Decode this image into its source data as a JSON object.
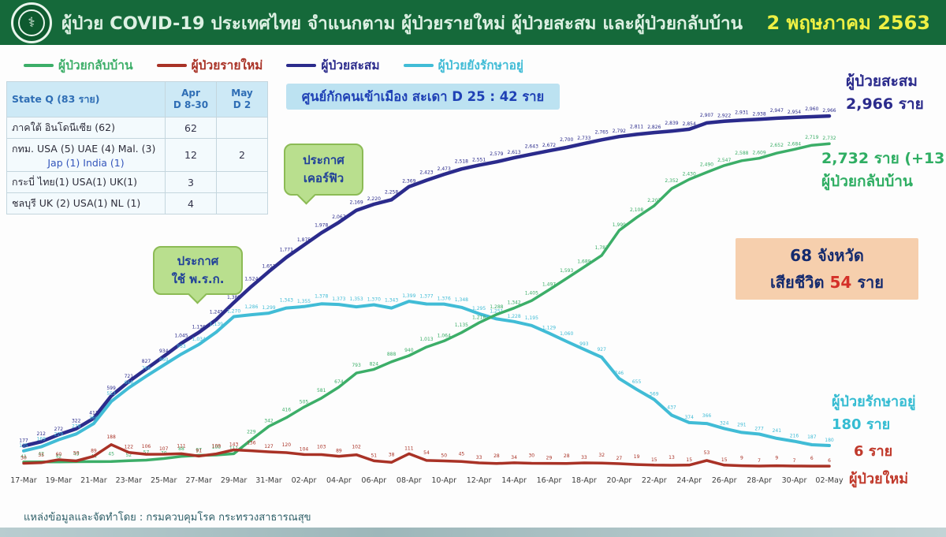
{
  "header": {
    "title": "ผู้ป่วย COVID-19 ประเทศไทย จำแนกตาม ผู้ป่วยรายใหม่ ผู้ป่วยสะสม  และผู้ป่วยกลับบ้าน",
    "date": "2 พฤษภาคม 2563",
    "logo": "moph-emblem"
  },
  "legend": [
    {
      "label": "ผู้ป่วยกลับบ้าน",
      "color": "#3cae68"
    },
    {
      "label": "ผู้ป่วยรายใหม่",
      "color": "#a93226"
    },
    {
      "label": "ผู้ป่วยสะสม",
      "color": "#2b2b8c"
    },
    {
      "label": "ผู้ป่วยยังรักษาอยู่",
      "color": "#41bcd6"
    }
  ],
  "state_q_table": {
    "header": {
      "col1": "State Q   (83 ราย)",
      "col2_line1": "Apr",
      "col2_line2": "D 8-30",
      "col3_line1": "May",
      "col3_line2": "D 2"
    },
    "rows": [
      {
        "label": "ภาคใต้ อินโดนีเซีย (62)",
        "label2": "",
        "apr": "62",
        "may": ""
      },
      {
        "label": "กทม. USA (5)  UAE (4) Mal. (3)",
        "label2": "Jap (1) India (1)",
        "apr": "12",
        "may": "2"
      },
      {
        "label": "กระบี่  ไทย(1) USA(1) UK(1)",
        "label2": "",
        "apr": "3",
        "may": ""
      },
      {
        "label": "ชลบุรี UK (2) USA(1) NL (1)",
        "label2": "",
        "apr": "4",
        "may": ""
      }
    ]
  },
  "quarantine_note": "ศูนย์กักคนเข้าเมือง  สะเดา  D 25 : 42 ราย",
  "callouts": {
    "curfew": {
      "line1": "ประกาศ",
      "line2": "เคอร์ฟิว"
    },
    "decree": {
      "line1": "ประกาศ",
      "line2": "ใช้ พ.ร.ก."
    }
  },
  "annotations": {
    "cumulative": {
      "label": "ผู้ป่วยสะสม",
      "value": "2,966 ราย"
    },
    "recovered": {
      "value": "2,732 ราย (+13)",
      "label": "ผู้ป่วยกลับบ้าน"
    },
    "deaths_box": {
      "line1": "68 จังหวัด",
      "prefix": "เสียชีวิต",
      "value": "54",
      "suffix": "ราย"
    },
    "active": {
      "label": "ผู้ป่วยรักษาอยู่",
      "value": "180 ราย"
    },
    "new": {
      "value": "6 ราย",
      "label": "ผู้ป่วยใหม่"
    }
  },
  "footer": "แหล่งข้อมูลและจัดทำโดย : กรมควบคุมโรค กระทรวงสาธารณสุข",
  "chart_data": {
    "type": "line",
    "title": "ผู้ป่วย COVID-19 ประเทศไทย จำแนกตาม ผู้ป่วยรายใหม่ ผู้ป่วยสะสม และผู้ป่วยกลับบ้าน (17 มี.ค. – 2 พ.ค. 2563)",
    "x_tick_labels": [
      "17-Mar",
      "19-Mar",
      "21-Mar",
      "23-Mar",
      "25-Mar",
      "27-Mar",
      "29-Mar",
      "31-Mar",
      "02-Apr",
      "04-Apr",
      "06-Apr",
      "08-Apr",
      "10-Apr",
      "12-Apr",
      "14-Apr",
      "16-Apr",
      "18-Apr",
      "20-Apr",
      "22-Apr",
      "24-Apr",
      "26-Apr",
      "28-Apr",
      "30-Apr",
      "02-May"
    ],
    "n_points": 47,
    "ylim": [
      0,
      3000
    ],
    "grid": false,
    "legend_position": "top-left",
    "series": [
      {
        "name": "ผู้ป่วยสะสม",
        "color": "#2b2b8c",
        "width": 4.5,
        "values": [
          177,
          212,
          272,
          322,
          411,
          599,
          721,
          827,
          934,
          1045,
          1136,
          1245,
          1388,
          1524,
          1651,
          1771,
          1875,
          1978,
          2067,
          2169,
          2220,
          2258,
          2369,
          2423,
          2473,
          2518,
          2551,
          2579,
          2613,
          2643,
          2672,
          2700,
          2733,
          2765,
          2792,
          2811,
          2826,
          2839,
          2854,
          2907,
          2922,
          2931,
          2938,
          2947,
          2954,
          2960,
          2966
        ]
      },
      {
        "name": "ผู้ป่วยยังรักษาอยู่",
        "color": "#41bcd6",
        "width": 4,
        "values": [
          135,
          169,
          229,
          278,
          366,
          553,
          668,
          766,
          860,
          953,
          1034,
          1139,
          1270,
          1286,
          1299,
          1343,
          1355,
          1378,
          1373,
          1353,
          1370,
          1343,
          1399,
          1377,
          1376,
          1348,
          1295,
          1251,
          1228,
          1195,
          1129,
          1060,
          993,
          927,
          746,
          655,
          569,
          437,
          374,
          366,
          324,
          291,
          277,
          241,
          216,
          187,
          180
        ]
      },
      {
        "name": "ผู้ป่วยกลับบ้าน",
        "color": "#3cae68",
        "width": 3.5,
        "values": [
          41,
          42,
          42,
          43,
          44,
          45,
          52,
          57,
          70,
          88,
          97,
          100,
          111,
          229,
          342,
          416,
          505,
          581,
          674,
          793,
          824,
          888,
          940,
          1013,
          1064,
          1135,
          1218,
          1288,
          1342,
          1405,
          1497,
          1593,
          1689,
          1787,
          1999,
          2108,
          2207,
          2352,
          2430,
          2490,
          2547,
          2588,
          2609,
          2652,
          2684,
          2719,
          2732
        ]
      },
      {
        "name": "ผู้ป่วยรายใหม่",
        "color": "#a93226",
        "width": 3.5,
        "values": [
          30,
          35,
          60,
          50,
          89,
          188,
          122,
          106,
          107,
          111,
          91,
          109,
          143,
          136,
          127,
          120,
          104,
          103,
          89,
          102,
          51,
          38,
          111,
          54,
          50,
          45,
          33,
          28,
          34,
          30,
          29,
          28,
          33,
          32,
          27,
          19,
          15,
          13,
          15,
          53,
          15,
          9,
          7,
          9,
          7,
          6,
          6
        ]
      }
    ]
  }
}
